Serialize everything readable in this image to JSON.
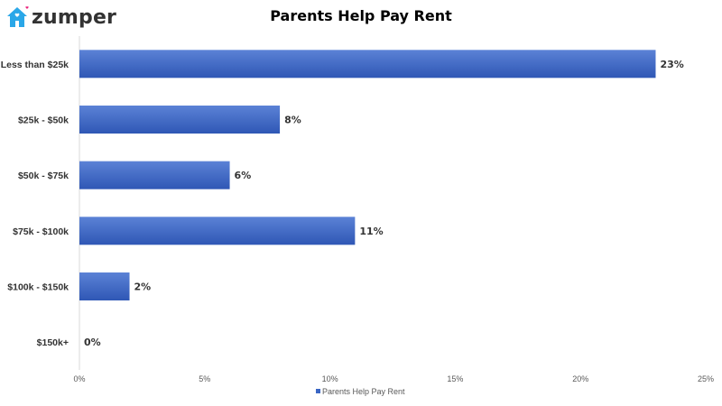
{
  "logo": {
    "text": "zumper",
    "icon": "house-icon",
    "colors": {
      "house": "#2aa7e8",
      "heart": "#ec1e79",
      "text": "#333333"
    }
  },
  "chart_data": {
    "type": "bar",
    "orientation": "horizontal",
    "title": "Parents Help Pay Rent",
    "categories": [
      "Less than $25k",
      "$25k - $50k",
      "$50k - $75k",
      "$75k - $100k",
      "$100k - $150k",
      "$150k+"
    ],
    "series": [
      {
        "name": "Parents Help Pay Rent",
        "values": [
          23,
          8,
          6,
          11,
          2,
          0
        ],
        "color": "#3a66c4"
      }
    ],
    "data_labels": [
      "23%",
      "8%",
      "6%",
      "11%",
      "2%",
      "0%"
    ],
    "xlim": [
      0,
      25
    ],
    "x_ticks": [
      0,
      5,
      10,
      15,
      20,
      25
    ],
    "x_tick_labels": [
      "0%",
      "5%",
      "10%",
      "15%",
      "20%",
      "25%"
    ],
    "xlabel": "",
    "ylabel": "",
    "grid": false,
    "legend_position": "bottom"
  }
}
